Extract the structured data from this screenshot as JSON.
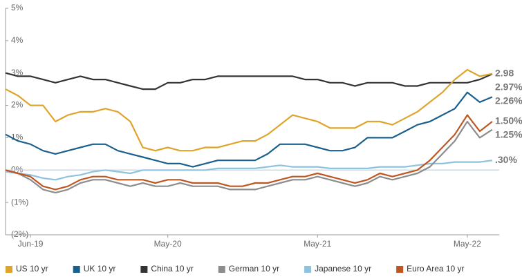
{
  "chart_data": {
    "type": "line",
    "categories": [
      null,
      null,
      "Jun-19",
      null,
      null,
      null,
      null,
      null,
      null,
      null,
      null,
      null,
      null,
      "May-20",
      null,
      null,
      null,
      null,
      null,
      null,
      null,
      null,
      null,
      null,
      null,
      "May-21",
      null,
      null,
      null,
      null,
      null,
      null,
      null,
      null,
      null,
      null,
      null,
      "May-22",
      null,
      null
    ],
    "ylim": [
      -2,
      5
    ],
    "yticks": [
      {
        "value": -2,
        "label": "(2%)"
      },
      {
        "value": -1,
        "label": "(1%)"
      },
      {
        "value": 0,
        "label": "0%"
      },
      {
        "value": 1,
        "label": "1%"
      },
      {
        "value": 2,
        "label": "2%"
      },
      {
        "value": 3,
        "label": "3%"
      },
      {
        "value": 4,
        "label": "4%"
      },
      {
        "value": 5,
        "label": "5%"
      }
    ],
    "series": [
      {
        "name": "US 10 yr",
        "color": "#dfa42a",
        "values": [
          2.5,
          2.3,
          2.0,
          2.0,
          1.5,
          1.7,
          1.8,
          1.8,
          1.9,
          1.8,
          1.5,
          0.7,
          0.6,
          0.7,
          0.6,
          0.6,
          0.7,
          0.7,
          0.8,
          0.9,
          0.9,
          1.1,
          1.4,
          1.7,
          1.6,
          1.5,
          1.3,
          1.3,
          1.3,
          1.5,
          1.5,
          1.4,
          1.6,
          1.8,
          2.1,
          2.4,
          2.8,
          3.1,
          2.9,
          2.98
        ],
        "value_labels": [
          null,
          null,
          null,
          null,
          null,
          null,
          null,
          null,
          null,
          null,
          null,
          null,
          null,
          null,
          null,
          null,
          null,
          null,
          null,
          null,
          null,
          null,
          null,
          null,
          null,
          null,
          null,
          null,
          null,
          null,
          null,
          null,
          null,
          null,
          null,
          null,
          null,
          null,
          null,
          "2.98"
        ]
      },
      {
        "name": "UK 10 yr",
        "color": "#1b5f8c",
        "values": [
          1.1,
          0.9,
          0.8,
          0.6,
          0.5,
          0.6,
          0.7,
          0.8,
          0.8,
          0.6,
          0.5,
          0.4,
          0.3,
          0.2,
          0.2,
          0.1,
          0.2,
          0.3,
          0.3,
          0.3,
          0.3,
          0.5,
          0.8,
          0.8,
          0.8,
          0.7,
          0.6,
          0.6,
          0.7,
          1.0,
          1.0,
          1.0,
          1.2,
          1.4,
          1.5,
          1.7,
          1.9,
          2.4,
          2.1,
          2.26
        ],
        "value_labels": [
          null,
          null,
          null,
          null,
          null,
          null,
          null,
          null,
          null,
          null,
          null,
          null,
          null,
          null,
          null,
          null,
          null,
          null,
          null,
          null,
          null,
          null,
          null,
          null,
          null,
          null,
          null,
          null,
          null,
          null,
          null,
          null,
          null,
          null,
          null,
          null,
          null,
          null,
          null,
          "2.26%"
        ]
      },
      {
        "name": "China 10 yr",
        "color": "#333333",
        "values": [
          3.0,
          2.9,
          2.9,
          2.8,
          2.7,
          2.8,
          2.9,
          2.8,
          2.8,
          2.7,
          2.6,
          2.5,
          2.5,
          2.7,
          2.7,
          2.8,
          2.8,
          2.9,
          2.9,
          2.9,
          2.9,
          2.9,
          2.9,
          2.9,
          2.8,
          2.8,
          2.7,
          2.7,
          2.6,
          2.7,
          2.7,
          2.7,
          2.6,
          2.6,
          2.7,
          2.7,
          2.7,
          2.7,
          2.8,
          2.97
        ],
        "value_labels": [
          null,
          null,
          null,
          null,
          null,
          null,
          null,
          null,
          null,
          null,
          null,
          null,
          null,
          null,
          null,
          null,
          null,
          null,
          null,
          null,
          null,
          null,
          null,
          null,
          null,
          null,
          null,
          null,
          null,
          null,
          null,
          null,
          null,
          null,
          null,
          null,
          null,
          null,
          null,
          "2.97%"
        ]
      },
      {
        "name": "German 10 yr",
        "color": "#8c8c8c",
        "values": [
          0.0,
          -0.1,
          -0.3,
          -0.6,
          -0.7,
          -0.6,
          -0.4,
          -0.3,
          -0.3,
          -0.4,
          -0.5,
          -0.4,
          -0.5,
          -0.5,
          -0.4,
          -0.5,
          -0.5,
          -0.5,
          -0.6,
          -0.6,
          -0.6,
          -0.5,
          -0.4,
          -0.3,
          -0.3,
          -0.2,
          -0.3,
          -0.4,
          -0.5,
          -0.4,
          -0.2,
          -0.3,
          -0.2,
          -0.1,
          0.1,
          0.5,
          0.9,
          1.5,
          1.0,
          1.25
        ],
        "value_labels": [
          null,
          null,
          null,
          null,
          null,
          null,
          null,
          null,
          null,
          null,
          null,
          null,
          null,
          null,
          null,
          null,
          null,
          null,
          null,
          null,
          null,
          null,
          null,
          null,
          null,
          null,
          null,
          null,
          null,
          null,
          null,
          null,
          null,
          null,
          null,
          null,
          null,
          null,
          null,
          "1.25%"
        ]
      },
      {
        "name": "Japanese 10 yr",
        "color": "#8ec3df",
        "values": [
          -0.05,
          -0.1,
          -0.15,
          -0.25,
          -0.3,
          -0.2,
          -0.15,
          -0.05,
          0.0,
          -0.05,
          -0.1,
          0.0,
          0.0,
          0.0,
          0.0,
          0.0,
          0.0,
          0.05,
          0.05,
          0.05,
          0.05,
          0.1,
          0.15,
          0.1,
          0.1,
          0.1,
          0.05,
          0.05,
          0.05,
          0.05,
          0.1,
          0.1,
          0.1,
          0.15,
          0.2,
          0.2,
          0.25,
          0.25,
          0.25,
          0.3
        ],
        "value_labels": [
          null,
          null,
          null,
          null,
          null,
          null,
          null,
          null,
          null,
          null,
          null,
          null,
          null,
          null,
          null,
          null,
          null,
          null,
          null,
          null,
          null,
          null,
          null,
          null,
          null,
          null,
          null,
          null,
          null,
          null,
          null,
          null,
          null,
          null,
          null,
          null,
          null,
          null,
          null,
          ".30%"
        ]
      },
      {
        "name": "Euro Area 10 yr",
        "color": "#c0561f",
        "values": [
          0.0,
          -0.1,
          -0.2,
          -0.5,
          -0.6,
          -0.5,
          -0.3,
          -0.2,
          -0.2,
          -0.3,
          -0.3,
          -0.3,
          -0.4,
          -0.3,
          -0.3,
          -0.4,
          -0.4,
          -0.4,
          -0.5,
          -0.5,
          -0.4,
          -0.4,
          -0.3,
          -0.2,
          -0.2,
          -0.1,
          -0.2,
          -0.3,
          -0.4,
          -0.3,
          -0.1,
          -0.2,
          -0.1,
          0.0,
          0.3,
          0.7,
          1.1,
          1.7,
          1.2,
          1.5
        ],
        "value_labels": [
          null,
          null,
          null,
          null,
          null,
          null,
          null,
          null,
          null,
          null,
          null,
          null,
          null,
          null,
          null,
          null,
          null,
          null,
          null,
          null,
          null,
          null,
          null,
          null,
          null,
          null,
          null,
          null,
          null,
          null,
          null,
          null,
          null,
          null,
          null,
          null,
          null,
          null,
          null,
          "1.50%"
        ]
      }
    ]
  }
}
